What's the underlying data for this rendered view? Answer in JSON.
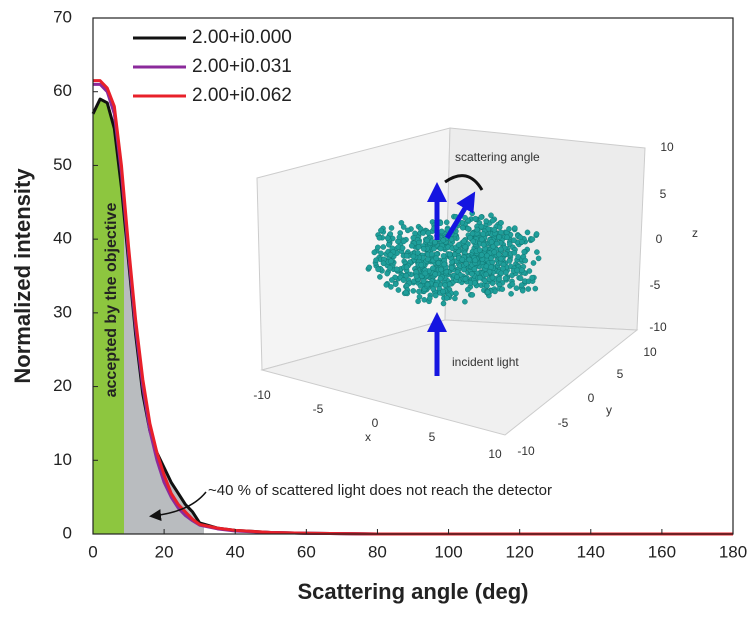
{
  "chart_data": {
    "type": "line",
    "x_label": "Scattering angle (deg)",
    "y_label": "Normalized intensity",
    "x": [
      0,
      2,
      4,
      6,
      8,
      10,
      12,
      14,
      16,
      18,
      20,
      22,
      24,
      26,
      28,
      30,
      35,
      40,
      50,
      60,
      80,
      100,
      120,
      140,
      160,
      180
    ],
    "series": [
      {
        "name": "2.00+i0.000",
        "color": "#111111",
        "values": [
          57,
          59,
          58.5,
          55,
          47,
          37,
          27,
          19,
          14,
          11,
          9,
          7,
          5.5,
          4,
          3,
          1.5,
          0.8,
          0.5,
          0.2,
          0.1,
          0,
          0,
          0,
          0,
          0,
          0
        ]
      },
      {
        "name": "2.00+i0.031",
        "color": "#8b2a9b",
        "values": [
          61,
          61,
          60,
          57,
          49,
          38,
          28,
          20,
          14,
          10,
          7,
          5,
          3.5,
          2.5,
          1.8,
          1.2,
          0.7,
          0.4,
          0.2,
          0.1,
          0,
          0,
          0,
          0,
          0,
          0
        ]
      },
      {
        "name": "2.00+i0.062",
        "color": "#e8202a",
        "values": [
          61.5,
          61.5,
          60.5,
          58,
          50,
          39,
          29,
          21,
          15,
          11,
          8,
          5.5,
          4,
          3,
          2,
          1.3,
          0.8,
          0.5,
          0.2,
          0.1,
          0,
          0,
          0,
          0,
          0,
          0
        ]
      }
    ],
    "xlim": [
      0,
      180
    ],
    "xticks": [
      0,
      20,
      40,
      60,
      80,
      100,
      120,
      140,
      160,
      180
    ],
    "ylim": [
      0,
      70
    ],
    "yticks": [
      0,
      10,
      20,
      30,
      40,
      50,
      60,
      70
    ],
    "legend": "upper left",
    "annotations": [
      "accepted by the objective",
      "~40 % of scattered light does not reach the detector"
    ],
    "inset": {
      "x_label": "x",
      "y_label": "y",
      "z_label": "z",
      "xticks": [
        -10,
        -5,
        0,
        5,
        10
      ],
      "yticks": [
        -10,
        -5,
        0,
        5,
        10
      ],
      "zticks": [
        -10,
        -5,
        0,
        5,
        10
      ],
      "annotations": [
        "scattering angle",
        "incident light"
      ]
    }
  }
}
